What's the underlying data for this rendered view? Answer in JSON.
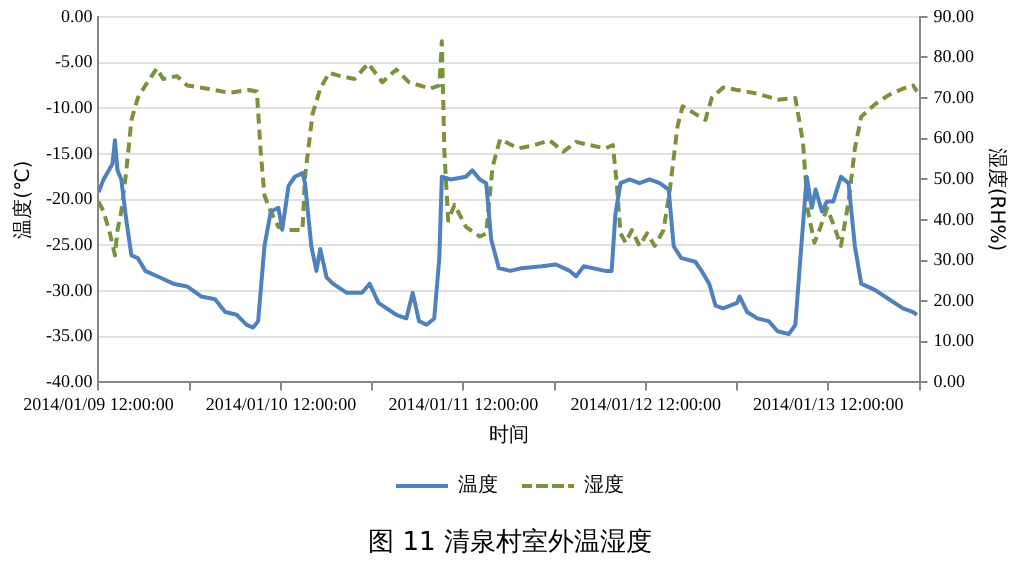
{
  "chart_data": {
    "type": "line",
    "title": "图 11  清泉村室外温湿度",
    "xlabel": "时间",
    "ylabel": "温度(℃)",
    "y2label": "湿度(RH%)",
    "xlim": [
      "2014-01-09T12:00",
      "2014-01-14T00:00"
    ],
    "xticks": [
      {
        "value": "2014-01-09T12:00",
        "label": "2014/01/09 12:00:00"
      },
      {
        "value": "2014-01-10T00:00",
        "label": null
      },
      {
        "value": "2014-01-10T12:00",
        "label": "2014/01/10 12:00:00"
      },
      {
        "value": "2014-01-11T00:00",
        "label": null
      },
      {
        "value": "2014-01-11T12:00",
        "label": "2014/01/11 12:00:00"
      },
      {
        "value": "2014-01-12T00:00",
        "label": null
      },
      {
        "value": "2014-01-12T12:00",
        "label": "2014/01/12 12:00:00"
      },
      {
        "value": "2014-01-13T00:00",
        "label": null
      },
      {
        "value": "2014-01-13T12:00",
        "label": "2014/01/13 12:00:00"
      },
      {
        "value": "2014-01-14T00:00",
        "label": null
      }
    ],
    "ylim": [
      -40,
      0
    ],
    "yticks": [
      {
        "value": -40,
        "label": "-40.00"
      },
      {
        "value": -35,
        "label": "-35.00"
      },
      {
        "value": -30,
        "label": "-30.00"
      },
      {
        "value": -25,
        "label": "-25.00"
      },
      {
        "value": -20,
        "label": "-20.00"
      },
      {
        "value": -15,
        "label": "-15.00"
      },
      {
        "value": -10,
        "label": "-10.00"
      },
      {
        "value": -5,
        "label": "-5.00"
      },
      {
        "value": 0,
        "label": "0.00"
      }
    ],
    "y2lim": [
      0,
      90
    ],
    "y2ticks": [
      {
        "value": 0,
        "label": "0.00"
      },
      {
        "value": 10,
        "label": "10.00"
      },
      {
        "value": 20,
        "label": "20.00"
      },
      {
        "value": 30,
        "label": "30.00"
      },
      {
        "value": 40,
        "label": "40.00"
      },
      {
        "value": 50,
        "label": "50.00"
      },
      {
        "value": 60,
        "label": "60.00"
      },
      {
        "value": 70,
        "label": "70.00"
      },
      {
        "value": 80,
        "label": "80.00"
      },
      {
        "value": 90,
        "label": "90.00"
      }
    ],
    "grid": "y",
    "legend": "bottom",
    "marker": "none",
    "series": [
      {
        "name": "温度",
        "color": "#4f81bd",
        "line_style": "solid",
        "x": [
          "2014-01-09T12:00",
          "2014-01-09T12:40",
          "2014-01-09T13:50",
          "2014-01-09T14:10",
          "2014-01-09T14:30",
          "2014-01-09T15:00",
          "2014-01-09T15:40",
          "2014-01-09T16:20",
          "2014-01-09T17:10",
          "2014-01-09T18:10",
          "2014-01-09T20:00",
          "2014-01-09T21:50",
          "2014-01-09T23:40",
          "2014-01-10T01:30",
          "2014-01-10T03:20",
          "2014-01-10T04:40",
          "2014-01-10T06:10",
          "2014-01-10T07:30",
          "2014-01-10T08:20",
          "2014-01-10T09:00",
          "2014-01-10T09:50",
          "2014-01-10T10:40",
          "2014-01-10T11:40",
          "2014-01-10T12:10",
          "2014-01-10T13:00",
          "2014-01-10T13:50",
          "2014-01-10T14:50",
          "2014-01-10T15:10",
          "2014-01-10T16:00",
          "2014-01-10T16:40",
          "2014-01-10T17:10",
          "2014-01-10T18:00",
          "2014-01-10T18:50",
          "2014-01-10T20:40",
          "2014-01-10T22:40",
          "2014-01-10T23:40",
          "2014-01-11T00:50",
          "2014-01-11T03:10",
          "2014-01-11T04:30",
          "2014-01-11T05:20",
          "2014-01-11T06:10",
          "2014-01-11T07:10",
          "2014-01-11T08:10",
          "2014-01-11T08:50",
          "2014-01-11T09:10",
          "2014-01-11T10:20",
          "2014-01-11T12:20",
          "2014-01-11T13:10",
          "2014-01-11T14:10",
          "2014-01-11T15:00",
          "2014-01-11T15:40",
          "2014-01-11T16:40",
          "2014-01-11T18:10",
          "2014-01-11T19:40",
          "2014-01-11T22:20",
          "2014-01-12T00:10",
          "2014-01-12T02:00",
          "2014-01-12T02:50",
          "2014-01-12T03:50",
          "2014-01-12T06:40",
          "2014-01-12T07:30",
          "2014-01-12T08:00",
          "2014-01-12T08:40",
          "2014-01-12T09:50",
          "2014-01-12T11:10",
          "2014-01-12T12:30",
          "2014-01-12T13:50",
          "2014-01-12T15:00",
          "2014-01-12T15:40",
          "2014-01-12T16:40",
          "2014-01-12T18:30",
          "2014-01-12T19:20",
          "2014-01-12T20:20",
          "2014-01-12T21:10",
          "2014-01-12T22:10",
          "2014-01-13T00:00",
          "2014-01-13T00:20",
          "2014-01-13T01:20",
          "2014-01-13T02:40",
          "2014-01-13T04:10",
          "2014-01-13T05:20",
          "2014-01-13T06:50",
          "2014-01-13T07:40",
          "2014-01-13T08:20",
          "2014-01-13T09:10",
          "2014-01-13T09:50",
          "2014-01-13T10:20",
          "2014-01-13T11:10",
          "2014-01-13T11:50",
          "2014-01-13T12:40",
          "2014-01-13T13:40",
          "2014-01-13T14:40",
          "2014-01-13T15:30",
          "2014-01-13T16:20",
          "2014-01-13T18:10",
          "2014-01-13T20:00",
          "2014-01-13T21:50",
          "2014-01-13T23:10",
          "2014-01-13T23:40"
        ],
        "values": [
          -19.2,
          -17.8,
          -16.1,
          -13.5,
          -16.8,
          -17.8,
          -22.3,
          -26.1,
          -26.4,
          -27.8,
          -28.5,
          -29.2,
          -29.5,
          -30.6,
          -30.9,
          -32.3,
          -32.6,
          -33.7,
          -34.0,
          -33.3,
          -25.1,
          -21.3,
          -20.9,
          -23.3,
          -18.5,
          -17.5,
          -17.1,
          -18.2,
          -25.1,
          -27.8,
          -25.4,
          -28.5,
          -29.2,
          -30.2,
          -30.2,
          -29.2,
          -31.3,
          -32.6,
          -33.0,
          -30.2,
          -33.3,
          -33.7,
          -33.0,
          -26.4,
          -17.5,
          -17.8,
          -17.5,
          -16.8,
          -17.8,
          -18.2,
          -24.4,
          -27.5,
          -27.8,
          -27.5,
          -27.3,
          -27.1,
          -27.8,
          -28.4,
          -27.3,
          -27.8,
          -27.8,
          -21.6,
          -18.2,
          -17.8,
          -18.2,
          -17.8,
          -18.2,
          -18.9,
          -25.1,
          -26.4,
          -26.8,
          -27.8,
          -29.2,
          -31.6,
          -31.9,
          -31.3,
          -30.6,
          -32.3,
          -33.0,
          -33.3,
          -34.4,
          -34.7,
          -33.7,
          -26.4,
          -17.5,
          -20.9,
          -18.9,
          -21.3,
          -20.2,
          -20.2,
          -17.5,
          -18.2,
          -25.1,
          -29.2,
          -29.9,
          -30.9,
          -31.9,
          -32.3,
          -32.6
        ]
      },
      {
        "name": "湿度",
        "color": "#77933c",
        "line_style": "dashed",
        "axis": "y2",
        "x": [
          "2014-01-09T12:00",
          "2014-01-09T12:40",
          "2014-01-09T13:30",
          "2014-01-09T14:10",
          "2014-01-09T14:30",
          "2014-01-09T15:00",
          "2014-01-09T15:40",
          "2014-01-09T16:20",
          "2014-01-09T17:10",
          "2014-01-09T18:10",
          "2014-01-09T19:40",
          "2014-01-09T20:30",
          "2014-01-09T22:20",
          "2014-01-09T23:40",
          "2014-01-10T02:20",
          "2014-01-10T05:10",
          "2014-01-10T07:50",
          "2014-01-10T08:50",
          "2014-01-10T09:20",
          "2014-01-10T09:50",
          "2014-01-10T10:40",
          "2014-01-10T11:40",
          "2014-01-10T13:00",
          "2014-01-10T14:50",
          "2014-01-10T15:10",
          "2014-01-10T16:10",
          "2014-01-10T17:10",
          "2014-01-10T18:20",
          "2014-01-10T19:50",
          "2014-01-10T21:40",
          "2014-01-10T23:30",
          "2014-01-11T01:20",
          "2014-01-11T03:10",
          "2014-01-11T04:50",
          "2014-01-11T07:40",
          "2014-01-11T08:50",
          "2014-01-11T09:10",
          "2014-01-11T09:30",
          "2014-01-11T10:00",
          "2014-01-11T10:50",
          "2014-01-11T12:20",
          "2014-01-11T14:10",
          "2014-01-11T15:00",
          "2014-01-11T15:50",
          "2014-01-11T16:50",
          "2014-01-11T17:40",
          "2014-01-11T19:10",
          "2014-01-11T21:20",
          "2014-01-11T23:20",
          "2014-01-12T01:10",
          "2014-01-12T02:50",
          "2014-01-12T04:40",
          "2014-01-12T06:40",
          "2014-01-12T07:40",
          "2014-01-12T08:10",
          "2014-01-12T08:40",
          "2014-01-12T09:20",
          "2014-01-12T10:10",
          "2014-01-12T11:10",
          "2014-01-12T12:10",
          "2014-01-12T13:10",
          "2014-01-12T14:20",
          "2014-01-12T15:10",
          "2014-01-12T16:10",
          "2014-01-12T16:50",
          "2014-01-12T18:30",
          "2014-01-12T19:50",
          "2014-01-12T20:40",
          "2014-01-12T22:10",
          "2014-01-13T00:00",
          "2014-01-13T02:40",
          "2014-01-13T05:20",
          "2014-01-13T07:40",
          "2014-01-13T08:40",
          "2014-01-13T09:20",
          "2014-01-13T10:10",
          "2014-01-13T10:50",
          "2014-01-13T11:50",
          "2014-01-13T12:40",
          "2014-01-13T13:40",
          "2014-01-13T14:40",
          "2014-01-13T15:30",
          "2014-01-13T16:20",
          "2014-01-13T18:10",
          "2014-01-13T20:00",
          "2014-01-13T21:50",
          "2014-01-13T23:10",
          "2014-01-13T23:40"
        ],
        "values": [
          44.5,
          42.1,
          36.7,
          31.3,
          37.5,
          42.1,
          52.2,
          64.6,
          70.0,
          73.1,
          77.3,
          74.7,
          75.4,
          73.1,
          72.3,
          71.3,
          72.0,
          71.6,
          56.8,
          46.0,
          42.1,
          38.3,
          37.5,
          37.5,
          50.7,
          66.1,
          72.3,
          76.2,
          75.4,
          74.7,
          78.5,
          73.9,
          77.0,
          73.9,
          72.3,
          73.1,
          84.0,
          56.8,
          39.8,
          43.7,
          38.3,
          35.9,
          36.7,
          53.0,
          59.9,
          59.1,
          57.6,
          58.4,
          59.6,
          56.8,
          59.2,
          58.4,
          57.6,
          58.4,
          49.1,
          36.7,
          34.4,
          37.5,
          33.6,
          36.7,
          33.6,
          37.5,
          47.6,
          63.0,
          68.0,
          66.1,
          64.6,
          70.0,
          72.6,
          72.0,
          71.1,
          69.6,
          70.0,
          59.2,
          42.1,
          34.4,
          37.5,
          42.9,
          39.0,
          33.6,
          44.5,
          57.6,
          65.4,
          68.5,
          70.8,
          72.3,
          73.1,
          71.6
        ]
      }
    ]
  }
}
